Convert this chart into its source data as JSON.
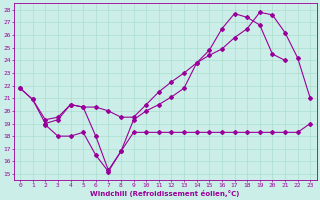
{
  "xlabel": "Windchill (Refroidissement éolien,°C)",
  "xlim": [
    -0.5,
    23.5
  ],
  "ylim": [
    14.5,
    28.5
  ],
  "yticks": [
    15,
    16,
    17,
    18,
    19,
    20,
    21,
    22,
    23,
    24,
    25,
    26,
    27,
    28
  ],
  "xticks": [
    0,
    1,
    2,
    3,
    4,
    5,
    6,
    7,
    8,
    9,
    10,
    11,
    12,
    13,
    14,
    15,
    16,
    17,
    18,
    19,
    20,
    21,
    22,
    23
  ],
  "bg_color": "#cceee8",
  "line_color": "#990099",
  "grid_color": "#aaddcc",
  "line1_x": [
    0,
    1,
    2,
    3,
    4,
    5,
    6,
    7,
    8,
    9,
    10,
    11,
    12,
    13,
    14,
    15,
    16,
    17,
    18,
    19,
    20,
    21,
    22,
    23
  ],
  "line1_y": [
    21.8,
    20.9,
    19.0,
    19.3,
    20.5,
    20.3,
    18.0,
    15.3,
    16.8,
    19.3,
    20.0,
    20.5,
    21.1,
    21.8,
    23.8,
    24.4,
    24.9,
    25.8,
    26.5,
    27.8,
    27.6,
    26.2,
    24.2,
    21.0
  ],
  "line2_x": [
    2,
    3,
    4,
    5,
    6,
    7,
    8,
    9,
    10,
    11,
    12,
    13,
    14,
    15,
    16,
    17,
    18,
    19,
    20,
    21,
    22,
    23
  ],
  "line2_y": [
    18.9,
    18.0,
    18.0,
    18.3,
    16.5,
    15.2,
    16.8,
    18.3,
    18.3,
    18.3,
    18.3,
    18.3,
    18.3,
    18.3,
    18.3,
    18.3,
    18.3,
    18.3,
    18.3,
    18.3,
    18.3,
    19.0
  ],
  "line3_x": [
    0,
    1,
    2,
    3,
    4,
    5,
    6,
    7,
    8,
    9,
    10,
    11,
    12,
    13,
    14,
    15,
    16,
    17,
    18,
    19,
    20,
    21
  ],
  "line3_y": [
    21.8,
    20.9,
    19.3,
    19.5,
    20.5,
    20.3,
    20.3,
    20.0,
    19.5,
    19.5,
    20.5,
    21.5,
    22.3,
    23.0,
    23.8,
    24.8,
    26.5,
    27.7,
    27.4,
    26.8,
    24.5,
    24.0
  ]
}
